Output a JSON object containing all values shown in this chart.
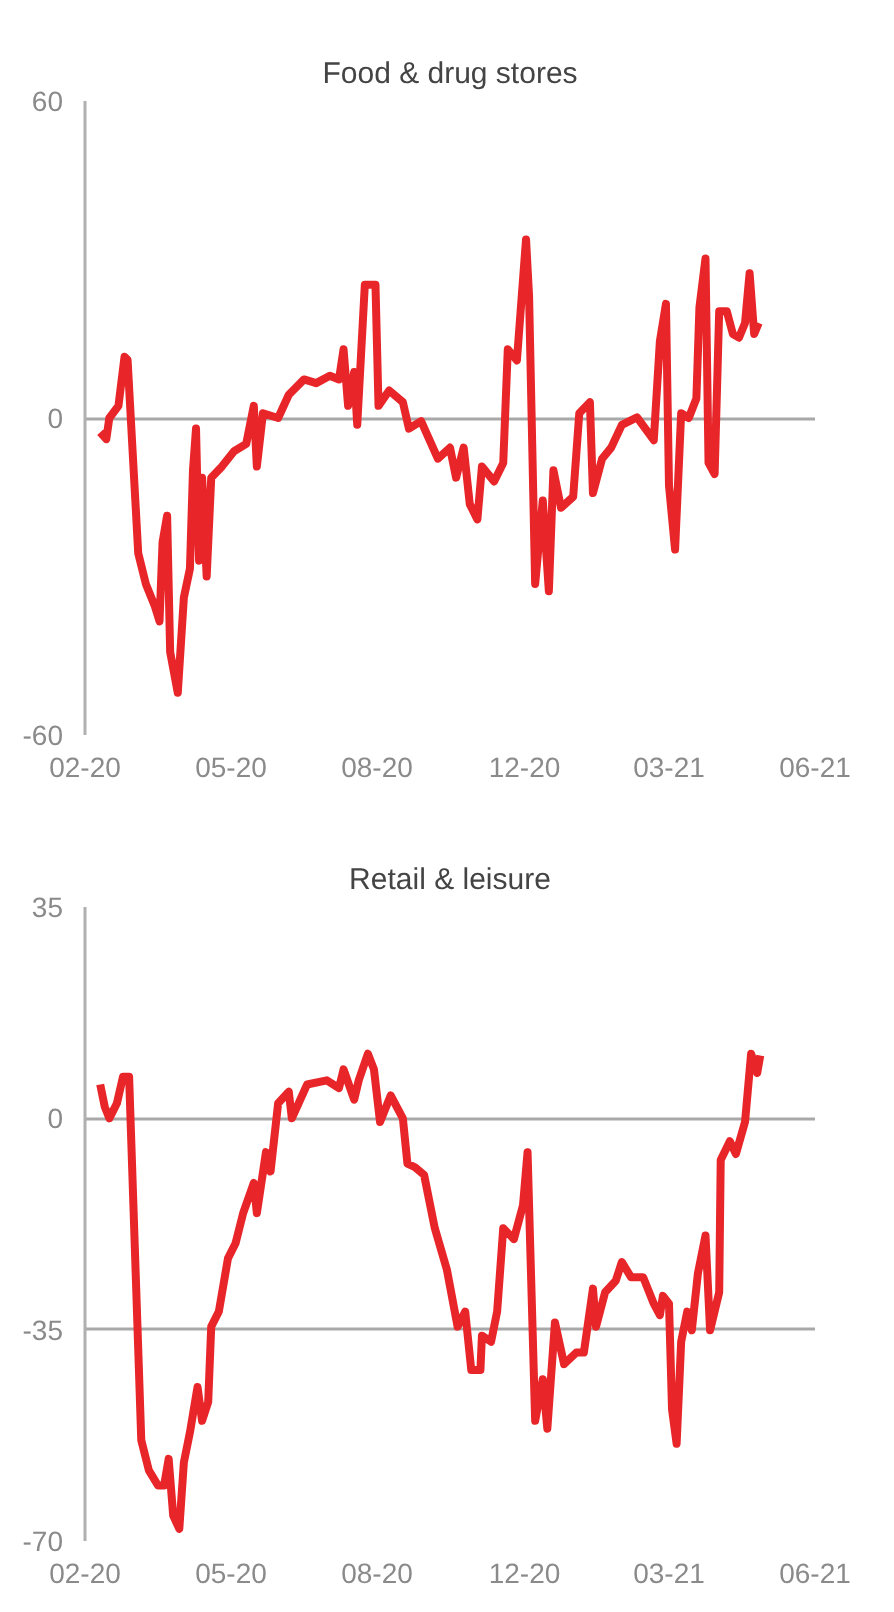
{
  "chart_data": [
    {
      "type": "line",
      "title": "Food & drug stores",
      "grid": "y",
      "line_style": "solid",
      "xlim": [
        "2020-02-15",
        "2021-06-09"
      ],
      "xticks": [
        {
          "value": "2020-02-15",
          "label": "02-20"
        },
        {
          "value": "2020-05-21",
          "label": "05-20"
        },
        {
          "value": "2020-08-25",
          "label": "08-20"
        },
        {
          "value": "2020-11-30",
          "label": "12-20"
        },
        {
          "value": "2021-03-05",
          "label": "03-21"
        },
        {
          "value": "2021-06-09",
          "label": "06-21"
        }
      ],
      "ylim": [
        -60,
        60
      ],
      "yticks": [
        -60,
        0,
        60
      ],
      "x": [
        "2020-02-25",
        "2020-02-29",
        "2020-03-02",
        "2020-03-08",
        "2020-03-12",
        "2020-03-14",
        "2020-03-21",
        "2020-03-26",
        "2020-04-01",
        "2020-04-04",
        "2020-04-06",
        "2020-04-09",
        "2020-04-11",
        "2020-04-16",
        "2020-04-20",
        "2020-04-24",
        "2020-04-26",
        "2020-04-28",
        "2020-04-30",
        "2020-05-02",
        "2020-05-05",
        "2020-05-08",
        "2020-05-15",
        "2020-05-23",
        "2020-05-31",
        "2020-06-05",
        "2020-06-07",
        "2020-06-11",
        "2020-06-21",
        "2020-06-28",
        "2020-07-08",
        "2020-07-16",
        "2020-07-25",
        "2020-07-31",
        "2020-08-03",
        "2020-08-06",
        "2020-08-10",
        "2020-08-12",
        "2020-08-17",
        "2020-08-24",
        "2020-08-26",
        "2020-09-02",
        "2020-09-11",
        "2020-09-15",
        "2020-09-23",
        "2020-10-04",
        "2020-10-12",
        "2020-10-16",
        "2020-10-21",
        "2020-10-25",
        "2020-10-30",
        "2020-11-02",
        "2020-11-10",
        "2020-11-16",
        "2020-11-19",
        "2020-11-25",
        "2020-12-01",
        "2020-12-03",
        "2020-12-07",
        "2020-12-12",
        "2020-12-16",
        "2020-12-19",
        "2020-12-24",
        "2021-01-01",
        "2021-01-05",
        "2021-01-12",
        "2021-01-14",
        "2021-01-20",
        "2021-01-26",
        "2021-02-02",
        "2021-02-12",
        "2021-02-23",
        "2021-02-27",
        "2021-03-03",
        "2021-03-05",
        "2021-03-09",
        "2021-03-13",
        "2021-03-18",
        "2021-03-23",
        "2021-03-25",
        "2021-03-29",
        "2021-03-31",
        "2021-04-04",
        "2021-04-07",
        "2021-04-12",
        "2021-04-16",
        "2021-04-20",
        "2021-04-24",
        "2021-04-27",
        "2021-04-30",
        "2021-05-03"
      ],
      "series": [
        {
          "color": "#e8262a",
          "values": [
            -2.7,
            -4,
            0,
            2.3,
            11.6,
            11,
            -25.6,
            -31.4,
            -35.7,
            -38.5,
            -23.5,
            -18.5,
            -44.3,
            -52,
            -34,
            -28.5,
            -9.9,
            -2,
            -27,
            -11.3,
            -30,
            -11.3,
            -9.2,
            -6.3,
            -4.9,
            2.3,
            -9.2,
            0.9,
            0,
            4.4,
            7.3,
            6.6,
            8,
            7.3,
            13,
            2.3,
            8.7,
            -1.3,
            25.2,
            25.2,
            2.3,
            5.2,
            3,
            -2,
            -0.6,
            -7.7,
            -5.6,
            -11.3,
            -5.6,
            -16.3,
            -19.2,
            -9.2,
            -12,
            -8.5,
            13,
            10.9,
            33.8,
            23,
            -31.4,
            -15.6,
            -32.8,
            -9.9,
            -17,
            -14.9,
            0.9,
            3,
            -14.2,
            -7.7,
            -5.6,
            -1.3,
            0.1,
            -4.2,
            14.5,
            21.6,
            -12.8,
            -24.9,
            0.9,
            0,
            3.7,
            20.9,
            30.2,
            -8.5,
            -10.6,
            20.2,
            20.2,
            15.9,
            15.2,
            18,
            27.4,
            15.9,
            18
          ]
        }
      ]
    },
    {
      "type": "line",
      "title": "Retail & leisure",
      "grid": "y",
      "line_style": "solid",
      "xlim": [
        "2020-02-15",
        "2021-06-09"
      ],
      "xticks": [
        {
          "value": "2020-02-15",
          "label": "02-20"
        },
        {
          "value": "2020-05-21",
          "label": "05-20"
        },
        {
          "value": "2020-08-25",
          "label": "08-20"
        },
        {
          "value": "2020-11-30",
          "label": "12-20"
        },
        {
          "value": "2021-03-05",
          "label": "03-21"
        },
        {
          "value": "2021-06-09",
          "label": "06-21"
        }
      ],
      "ylim": [
        -70,
        35
      ],
      "yticks": [
        -70,
        -35,
        0,
        35
      ],
      "x": [
        "2020-02-25",
        "2020-02-28",
        "2020-03-02",
        "2020-03-07",
        "2020-03-11",
        "2020-03-15",
        "2020-03-23",
        "2020-03-28",
        "2020-04-03",
        "2020-04-07",
        "2020-04-10",
        "2020-04-13",
        "2020-04-17",
        "2020-04-20",
        "2020-04-24",
        "2020-04-29",
        "2020-05-02",
        "2020-05-06",
        "2020-05-08",
        "2020-05-13",
        "2020-05-19",
        "2020-05-24",
        "2020-05-29",
        "2020-06-05",
        "2020-06-07",
        "2020-06-13",
        "2020-06-16",
        "2020-06-21",
        "2020-06-28",
        "2020-06-30",
        "2020-07-10",
        "2020-07-23",
        "2020-07-31",
        "2020-08-03",
        "2020-08-10",
        "2020-08-13",
        "2020-08-19",
        "2020-08-23",
        "2020-08-27",
        "2020-09-03",
        "2020-09-11",
        "2020-09-14",
        "2020-09-19",
        "2020-09-25",
        "2020-10-02",
        "2020-10-10",
        "2020-10-17",
        "2020-10-22",
        "2020-10-26",
        "2020-11-01",
        "2020-11-02",
        "2020-11-08",
        "2020-11-12",
        "2020-11-16",
        "2020-11-23",
        "2020-11-29",
        "2020-12-02",
        "2020-12-07",
        "2020-12-12",
        "2020-12-15",
        "2020-12-20",
        "2020-12-26",
        "2021-01-03",
        "2021-01-08",
        "2021-01-14",
        "2021-01-16",
        "2021-01-22",
        "2021-01-29",
        "2021-02-02",
        "2021-02-08",
        "2021-02-16",
        "2021-02-23",
        "2021-02-27",
        "2021-03-01",
        "2021-03-05",
        "2021-03-07",
        "2021-03-10",
        "2021-03-13",
        "2021-03-17",
        "2021-03-20",
        "2021-03-24",
        "2021-03-29",
        "2021-04-01",
        "2021-04-07",
        "2021-04-08",
        "2021-04-14",
        "2021-04-18",
        "2021-04-24",
        "2021-04-28",
        "2021-05-02",
        "2021-05-04"
      ],
      "series": [
        {
          "color": "#e8262a",
          "values": [
            5.6,
            1.9,
            0,
            2.5,
            6.9,
            6.9,
            -53.3,
            -58.3,
            -60.8,
            -60.8,
            -56.4,
            -65.8,
            -68,
            -57,
            -52,
            -44.5,
            -50.1,
            -47,
            -34.5,
            -32,
            -23.2,
            -20.7,
            -15.7,
            -10.7,
            -15.7,
            -5.6,
            -8.8,
            2.5,
            4.4,
            0,
            5.6,
            6.3,
            5,
            8.1,
            3.1,
            6.3,
            10.7,
            8.1,
            -0.6,
            3.8,
            0,
            -7.5,
            -8.1,
            -9.4,
            -18.2,
            -25.1,
            -34.5,
            -32,
            -41.7,
            -41.7,
            -36,
            -37,
            -32,
            -18.2,
            -20,
            -14.4,
            -5.6,
            -50.1,
            -43.2,
            -51.4,
            -33.8,
            -40.7,
            -38.8,
            -38.8,
            -28.2,
            -34.5,
            -28.8,
            -26.9,
            -23.8,
            -26.3,
            -26.3,
            -30.7,
            -32.6,
            -29.4,
            -30.7,
            -48.2,
            -53.9,
            -37,
            -32,
            -35.1,
            -25.7,
            -19.4,
            -35.1,
            -28.8,
            -6.9,
            -3.8,
            -5.9,
            -0.6,
            10.7,
            7.5,
            10.4
          ]
        }
      ]
    }
  ]
}
